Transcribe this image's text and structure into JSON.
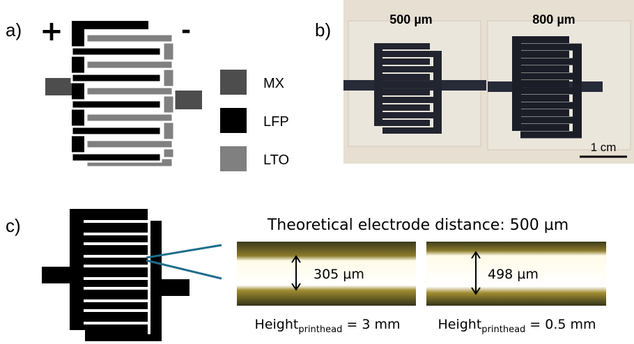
{
  "panel_a": {
    "label": "a)",
    "plus": "+",
    "minus": "-",
    "legend": [
      {
        "label": "MX",
        "color": "#4d4d4d"
      },
      {
        "label": "LFP",
        "color": "#000000"
      },
      {
        "label": "LTO",
        "color": "#808080"
      }
    ]
  },
  "panel_b": {
    "label": "b)",
    "left_title": "500 µm",
    "right_title": "800 µm",
    "scale_bar": "1 cm"
  },
  "panel_c": {
    "label": "c)",
    "title": "Theoretical electrode distance: 500 µm",
    "images": [
      {
        "measurement": "305 µm",
        "height_label": "Height",
        "height_subscript": "printhead",
        "height_value": "= 3 mm"
      },
      {
        "measurement": "498 µm",
        "height_label": "Height",
        "height_subscript": "printhead",
        "height_value": "= 0.5 mm"
      }
    ]
  }
}
